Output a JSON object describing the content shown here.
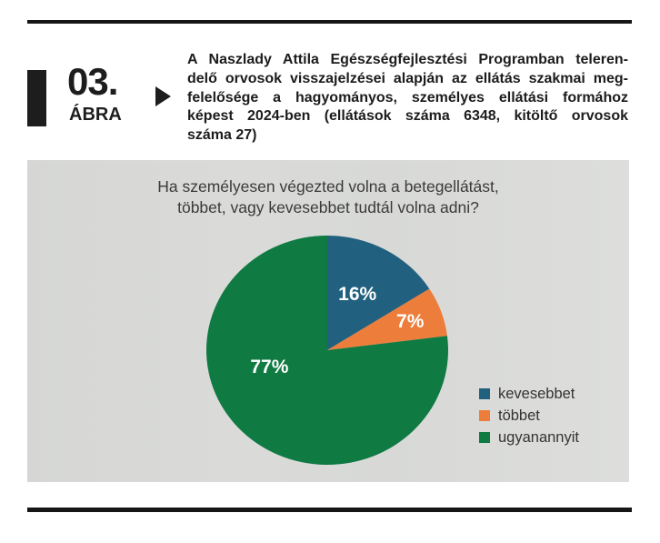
{
  "figure_header": {
    "number": "03.",
    "label": "ÁBRA",
    "caption_lines": [
      "A Naszlady Attila Egészségfejlesztési Programban teleren-",
      "delő orvosok visszajelzései alapján az ellátás szakmai meg-",
      "felelősége a hagyományos, személyes ellátási formához",
      "képest 2024-ben (ellátások száma 6348, kitöltő orvosok",
      "száma 27)"
    ]
  },
  "chart_data": {
    "type": "pie",
    "title_lines": [
      "Ha személyesen végezted volna a betegellátást,",
      "többet, vagy kevesebbet tudtál volna adni?"
    ],
    "slices": [
      {
        "label": "kevesebbet",
        "value": 16,
        "pct_label": "16%",
        "color": "#21617F",
        "label_angle": 27,
        "label_r": 0.55
      },
      {
        "label": "többet",
        "value": 7,
        "pct_label": "7%",
        "color": "#ED7D3B",
        "label_angle": 70,
        "label_r": 0.73
      },
      {
        "label": "ugyanannyit",
        "value": 77,
        "pct_label": "77%",
        "color": "#0F7A42",
        "label_angle": 253,
        "label_r": 0.5
      }
    ],
    "start_angle_deg": 0,
    "direction": "clockwise",
    "legend_position": "right",
    "slice_label_color": "#ffffff",
    "title_color": "#3a3a3a"
  }
}
